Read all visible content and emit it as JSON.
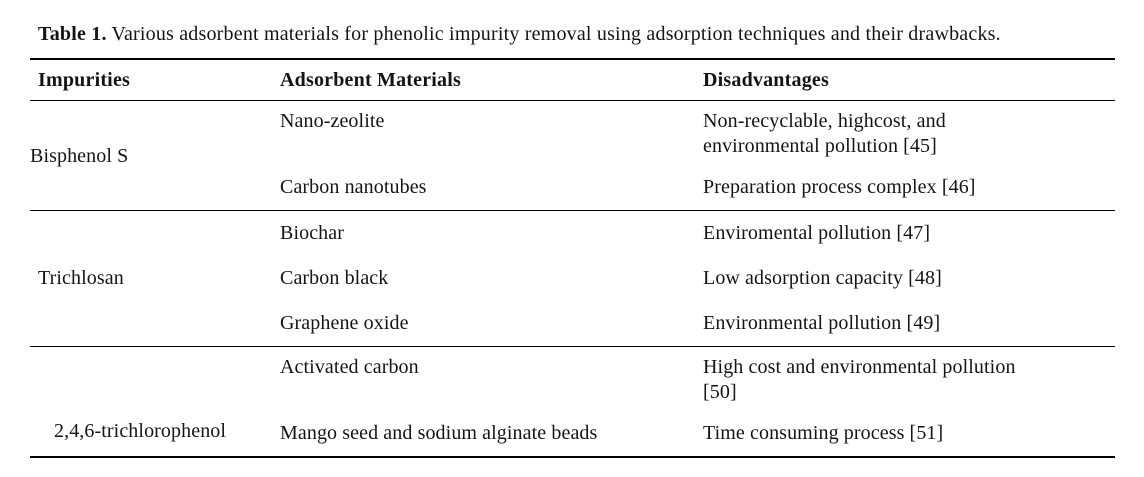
{
  "caption": {
    "label": "Table 1.",
    "text": "Various adsorbent materials for phenolic impurity removal using adsorption techniques and their drawbacks."
  },
  "table": {
    "columns": [
      "Impurities",
      "Adsorbent Materials",
      "Disadvantages"
    ],
    "groups": [
      {
        "impurity": "Bisphenol S",
        "rows": [
          {
            "material": "Nano-zeolite",
            "disadvantage": "Non-recyclable, highcost, and environmental pollution [45]"
          },
          {
            "material": "Carbon nanotubes",
            "disadvantage": "Preparation process complex [46]"
          }
        ]
      },
      {
        "impurity": "Trichlosan",
        "rows": [
          {
            "material": "Biochar",
            "disadvantage": "Enviromental pollution [47]"
          },
          {
            "material": "Carbon black",
            "disadvantage": "Low adsorption capacity [48]"
          },
          {
            "material": "Graphene oxide",
            "disadvantage": "Environmental pollution [49]"
          }
        ]
      },
      {
        "impurity": "2,4,6-trichlorophenol",
        "rows": [
          {
            "material": "Activated carbon",
            "disadvantage": "High cost and environmental pollution [50]"
          },
          {
            "material": "Mango seed and sodium alginate beads",
            "disadvantage": "Time consuming process [51]"
          }
        ]
      }
    ]
  },
  "colors": {
    "text": "#141414",
    "rule": "#000000",
    "background": "#ffffff"
  }
}
